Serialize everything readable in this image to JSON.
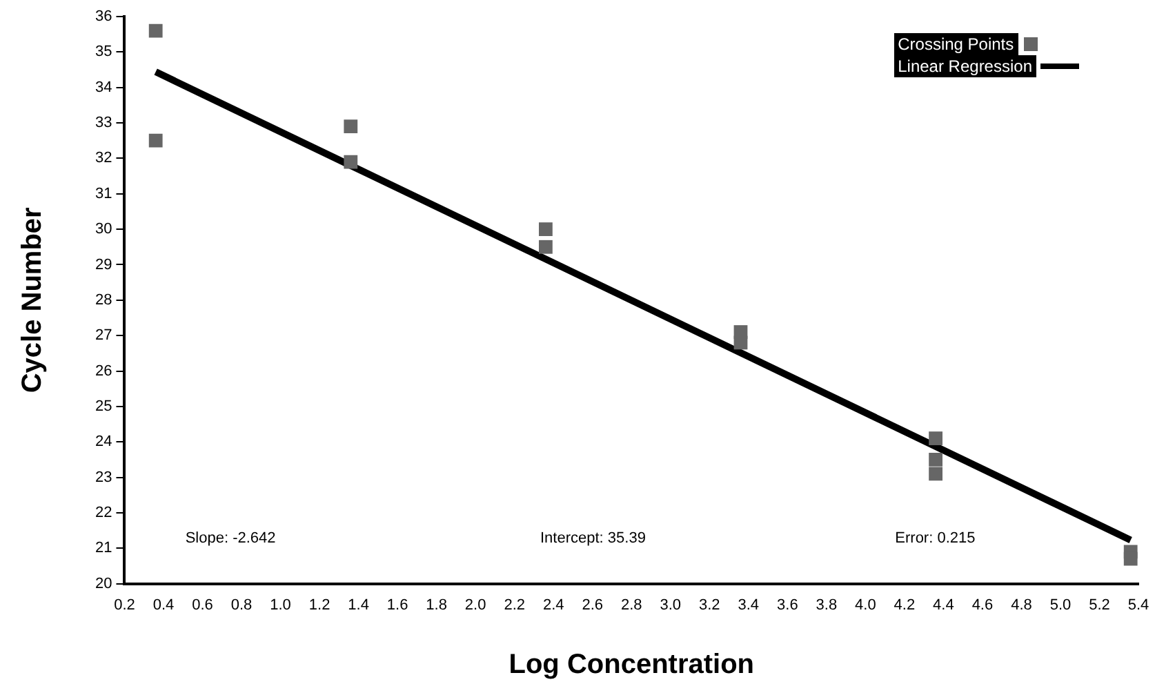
{
  "chart_data": {
    "type": "scatter",
    "xlabel": "Log Concentration",
    "ylabel": "Cycle Number",
    "xlim": [
      0.2,
      5.4
    ],
    "xticks": [
      {
        "value": 0.2,
        "label": "0.2"
      },
      {
        "value": 0.4,
        "label": "0.4"
      },
      {
        "value": 0.6,
        "label": "0.6"
      },
      {
        "value": 0.8,
        "label": "0.8"
      },
      {
        "value": 1.0,
        "label": "1.0"
      },
      {
        "value": 1.2,
        "label": "1.2"
      },
      {
        "value": 1.4,
        "label": "1.4"
      },
      {
        "value": 1.6,
        "label": "1.6"
      },
      {
        "value": 1.8,
        "label": "1.8"
      },
      {
        "value": 2.0,
        "label": "2.0"
      },
      {
        "value": 2.2,
        "label": "2.2"
      },
      {
        "value": 2.4,
        "label": "2.4"
      },
      {
        "value": 2.6,
        "label": "2.6"
      },
      {
        "value": 2.8,
        "label": "2.8"
      },
      {
        "value": 3.0,
        "label": "3.0"
      },
      {
        "value": 3.2,
        "label": "3.2"
      },
      {
        "value": 3.4,
        "label": "3.4"
      },
      {
        "value": 3.6,
        "label": "3.6"
      },
      {
        "value": 3.8,
        "label": "3.8"
      },
      {
        "value": 4.0,
        "label": "4.0"
      },
      {
        "value": 4.2,
        "label": "4.2"
      },
      {
        "value": 4.4,
        "label": "4.4"
      },
      {
        "value": 4.6,
        "label": "4.6"
      },
      {
        "value": 4.8,
        "label": "4.8"
      },
      {
        "value": 5.0,
        "label": "5.0"
      },
      {
        "value": 5.2,
        "label": "5.2"
      },
      {
        "value": 5.4,
        "label": "5.4"
      }
    ],
    "ylim": [
      20,
      36
    ],
    "yticks": [
      20,
      21,
      22,
      23,
      24,
      25,
      26,
      27,
      28,
      29,
      30,
      31,
      32,
      33,
      34,
      35,
      36
    ],
    "grid": false,
    "legend": "top right",
    "series": [
      {
        "name": "Crossing Points",
        "type": "scatter",
        "marker": "square",
        "color": "#666666",
        "x": [
          0.36,
          0.36,
          1.36,
          1.36,
          2.36,
          2.36,
          3.36,
          3.36,
          4.36,
          4.36,
          4.36,
          5.36,
          5.36
        ],
        "values": [
          35.6,
          32.5,
          32.9,
          31.9,
          30.0,
          29.5,
          27.1,
          26.8,
          24.1,
          23.5,
          23.1,
          20.9,
          20.7
        ]
      },
      {
        "name": "Linear Regression",
        "type": "line",
        "marker": "none",
        "line_style": "solid",
        "color": "#000000",
        "x": [
          0.36,
          5.36
        ],
        "values": [
          34.44,
          21.23
        ]
      }
    ],
    "annotations": [
      "Slope: -2.642",
      "Intercept: 35.39",
      "Error: 0.215"
    ]
  }
}
